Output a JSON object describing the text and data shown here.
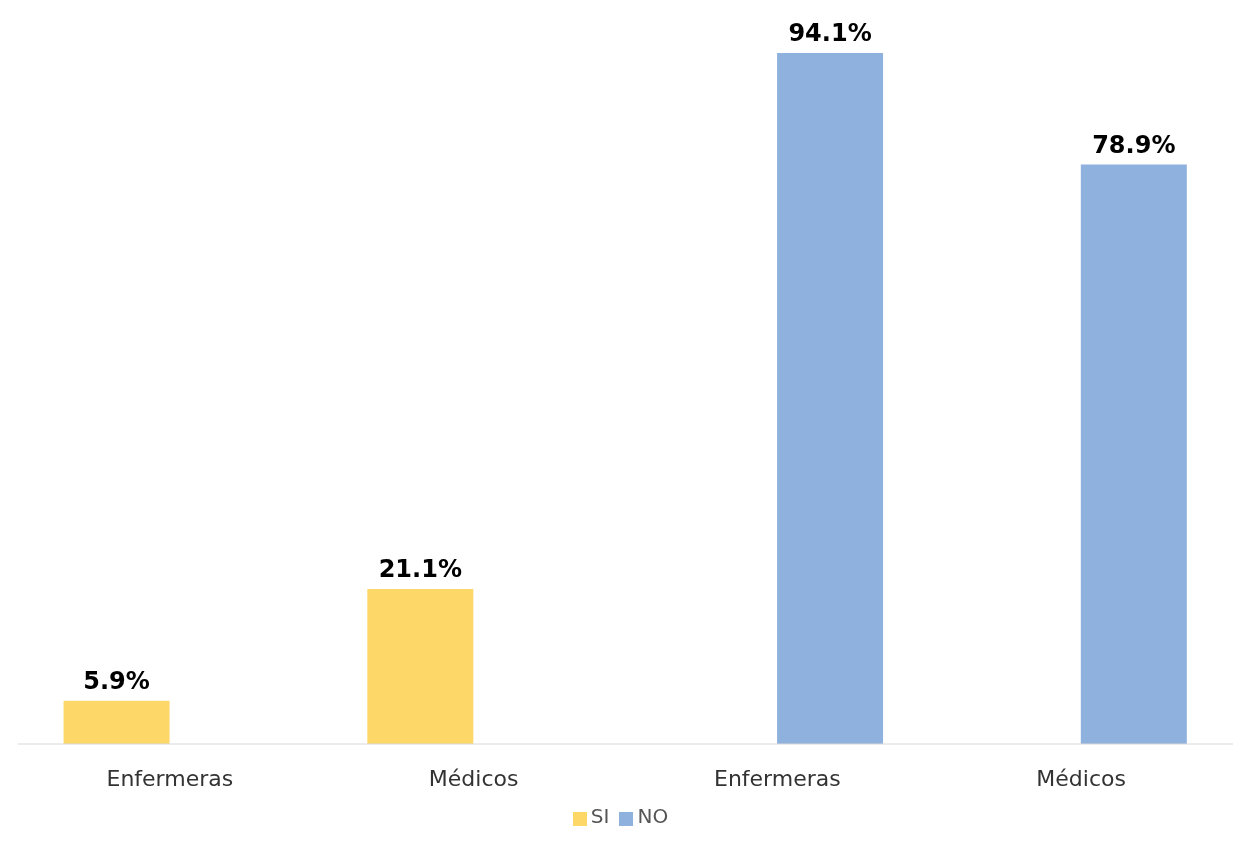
{
  "chart_data": {
    "type": "bar",
    "categories": [
      "Enfermeras",
      "Médicos",
      "Enfermeras",
      "Médicos"
    ],
    "series": [
      {
        "name": "SI",
        "color": "#fdd868",
        "values": [
          5.9,
          21.1,
          null,
          null
        ],
        "value_labels": [
          "5.9%",
          "21.1%",
          null,
          null
        ]
      },
      {
        "name": "NO",
        "color": "#8fb1dd",
        "values": [
          null,
          null,
          94.1,
          78.9
        ],
        "value_labels": [
          null,
          null,
          "94.1%",
          "78.9%"
        ]
      }
    ],
    "legend": "bottom",
    "grid": false
  }
}
